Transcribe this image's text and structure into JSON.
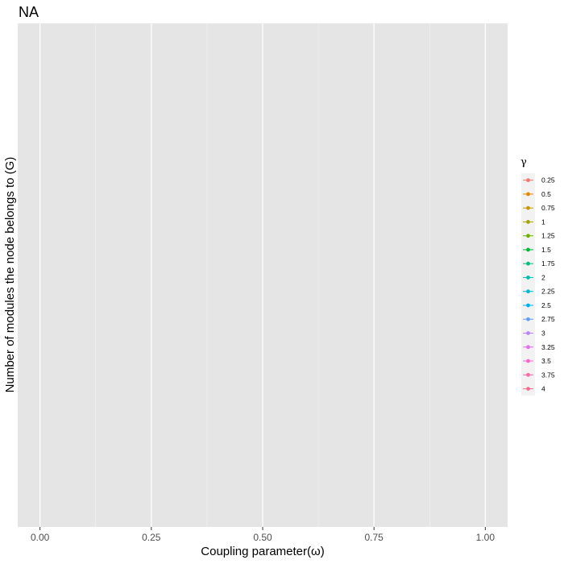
{
  "chart_data": {
    "type": "line",
    "title": "NA",
    "xlabel": "Coupling parameter(ω)",
    "ylabel": "Number of modules the node belongs to (G)",
    "xlim": [
      -0.05,
      1.05
    ],
    "x_ticks": [
      "0.00",
      "0.25",
      "0.50",
      "0.75",
      "1.00"
    ],
    "x_tick_values": [
      0,
      0.25,
      0.5,
      0.75,
      1.0
    ],
    "grid": true,
    "legend": {
      "title": "γ",
      "placement": "right",
      "entries": [
        {
          "label": "0.25",
          "color": "#F8766D"
        },
        {
          "label": "0.5",
          "color": "#E58700"
        },
        {
          "label": "0.75",
          "color": "#C99800"
        },
        {
          "label": "1",
          "color": "#A3A500"
        },
        {
          "label": "1.25",
          "color": "#6BB100"
        },
        {
          "label": "1.5",
          "color": "#00BA38"
        },
        {
          "label": "1.75",
          "color": "#00BF7D"
        },
        {
          "label": "2",
          "color": "#00C0AF"
        },
        {
          "label": "2.25",
          "color": "#00BCD8"
        },
        {
          "label": "2.5",
          "color": "#00B0F6"
        },
        {
          "label": "2.75",
          "color": "#619CFF"
        },
        {
          "label": "3",
          "color": "#B983FF"
        },
        {
          "label": "3.25",
          "color": "#E76BF3"
        },
        {
          "label": "3.5",
          "color": "#FD61D1"
        },
        {
          "label": "3.75",
          "color": "#FF67A4"
        },
        {
          "label": "4",
          "color": "#FF6C91"
        }
      ]
    },
    "series": []
  }
}
